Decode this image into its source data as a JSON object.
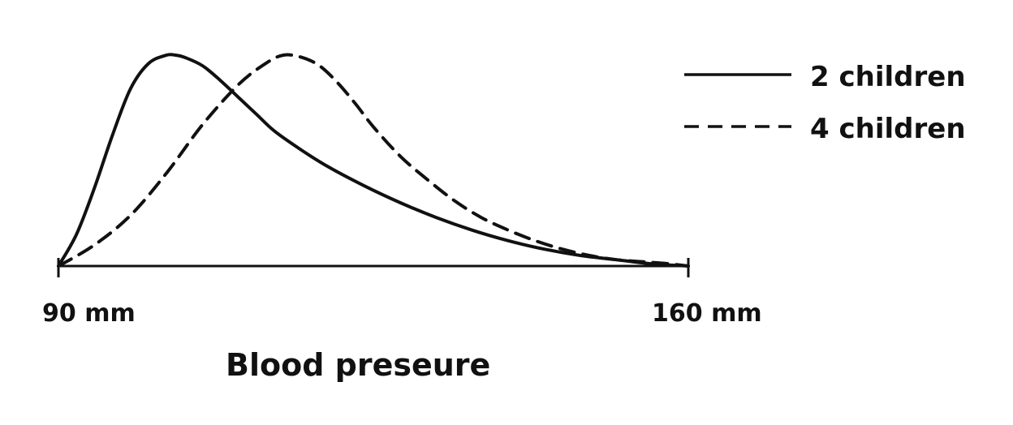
{
  "chart_data": {
    "type": "line",
    "title": "",
    "xlabel": "Blood preseure",
    "ylabel": "",
    "xlim": [
      90,
      160
    ],
    "ylim": [
      0,
      1
    ],
    "x_tick_labels": [
      "90 mm",
      "160 mm"
    ],
    "grid": false,
    "legend_position": "top-right",
    "colors": {
      "line": "#111111",
      "background": "#ffffff"
    },
    "series": [
      {
        "name": "2 children",
        "style": "solid",
        "x": [
          90,
          92,
          94,
          96,
          98,
          100,
          102,
          103,
          104,
          106,
          108,
          110,
          112,
          114,
          117,
          120,
          124,
          128,
          132,
          136,
          140,
          144,
          148,
          152,
          156,
          160
        ],
        "y": [
          0,
          0.15,
          0.37,
          0.62,
          0.84,
          0.96,
          1.0,
          1.0,
          0.99,
          0.95,
          0.88,
          0.8,
          0.72,
          0.64,
          0.55,
          0.47,
          0.38,
          0.3,
          0.23,
          0.17,
          0.12,
          0.08,
          0.05,
          0.03,
          0.01,
          0
        ]
      },
      {
        "name": "4 children",
        "style": "dashed",
        "x": [
          90,
          94,
          98,
          102,
          106,
          110,
          113,
          115,
          117,
          119,
          121,
          123,
          125,
          128,
          131,
          134,
          137,
          140,
          143,
          146,
          149,
          152,
          155,
          158,
          160
        ],
        "y": [
          0,
          0.1,
          0.24,
          0.44,
          0.67,
          0.86,
          0.96,
          1.0,
          0.99,
          0.95,
          0.87,
          0.77,
          0.66,
          0.52,
          0.41,
          0.31,
          0.23,
          0.17,
          0.12,
          0.08,
          0.05,
          0.03,
          0.02,
          0.01,
          0
        ]
      }
    ]
  }
}
